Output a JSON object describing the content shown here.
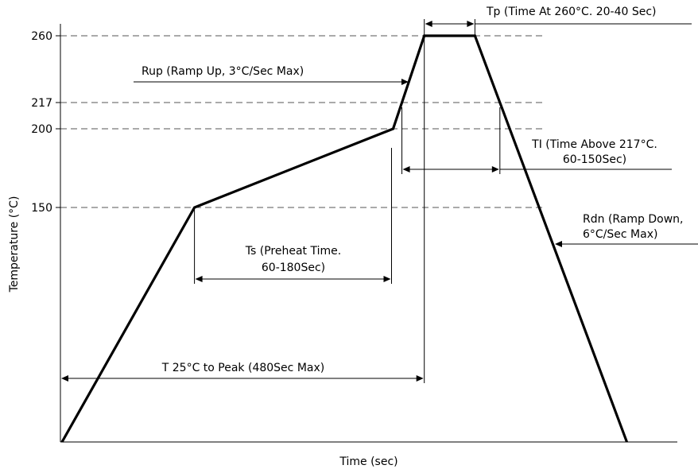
{
  "chart_data": {
    "type": "line",
    "title": "",
    "xlabel": "Time (sec)",
    "ylabel": "Temperature (°C)",
    "yticks": [
      {
        "value": 150,
        "label": "150"
      },
      {
        "value": 200,
        "label": "200"
      },
      {
        "value": 217,
        "label": "217"
      },
      {
        "value": 260,
        "label": "260"
      }
    ],
    "reference_levels": [
      150,
      200,
      217,
      260
    ],
    "series": [
      {
        "points": [
          {
            "x": 0,
            "y": 25
          },
          {
            "x": 68,
            "y": 150
          },
          {
            "x": 170,
            "y": 200
          },
          {
            "x": 186,
            "y": 260
          },
          {
            "x": 212,
            "y": 260
          },
          {
            "x": 290,
            "y": 25
          }
        ]
      }
    ],
    "annotations": [
      {
        "id": "ts",
        "lines": [
          "Ts (Preheat Time.",
          "60-180Sec)"
        ]
      },
      {
        "id": "rup",
        "lines": [
          "Rup (Ramp Up, 3°C/Sec Max)"
        ]
      },
      {
        "id": "tp",
        "lines": [
          "Tp (Time At 260°C. 20-40 Sec)"
        ]
      },
      {
        "id": "tl",
        "lines": [
          "TI (Time Above 217°C.",
          "60-150Sec)"
        ]
      },
      {
        "id": "rdn",
        "lines": [
          "Rdn (Ramp Down,",
          "6°C/Sec Max)"
        ]
      },
      {
        "id": "tpeak",
        "lines": [
          "T 25°C to Peak (480Sec Max)"
        ]
      }
    ]
  }
}
